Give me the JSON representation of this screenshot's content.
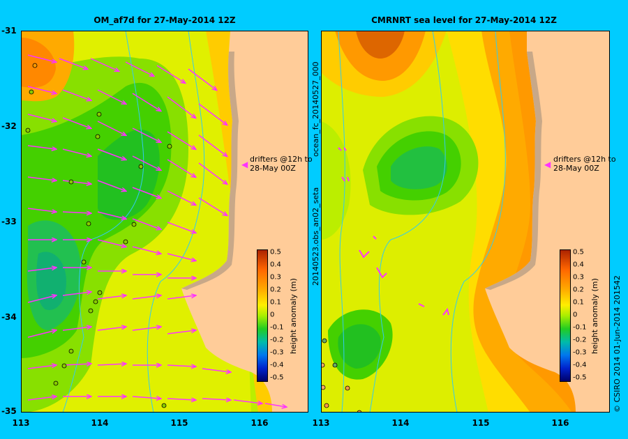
{
  "panels": [
    {
      "id": "left",
      "title": "OM_af7d for 27-May-2014 12Z"
    },
    {
      "id": "right",
      "title": "CMRNRT sea level  for 27-May-2014 12Z"
    }
  ],
  "axes": {
    "x_ticks": [
      "113",
      "114",
      "115",
      "116"
    ],
    "y_ticks": [
      "-31",
      "-32",
      "-33",
      "-34",
      "-35"
    ]
  },
  "annotation": {
    "drifters": "drifters @12h to\n28-May 00Z"
  },
  "colorbar": {
    "label": "height anomaly (m)",
    "ticks": [
      "0.5",
      "0.4",
      "0.3",
      "0.2",
      "0.1",
      "0",
      "-0.1",
      "-0.2",
      "-0.3",
      "-0.4",
      "-0.5"
    ]
  },
  "side_labels": {
    "left_top": "ocean_fc_20140527_000",
    "left_bottom": "20140523.obs_an02_seta",
    "right": "© CSIRO 2014   01-Jun-2014 201542"
  },
  "colors": {
    "background": "#00ccff",
    "land": "#ffcc99",
    "shelf": "#c8a888",
    "drifter_arrow": "#ff33ff",
    "isobath": "#33ccee"
  }
}
